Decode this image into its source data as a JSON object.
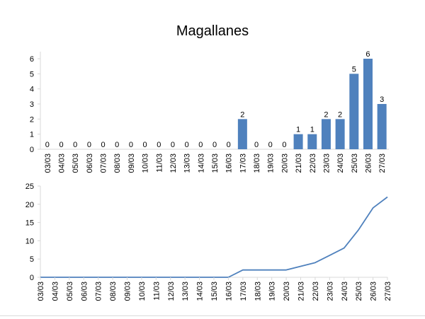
{
  "chart_data": [
    {
      "type": "bar",
      "title": "Magallanes",
      "categories": [
        "03/03",
        "04/03",
        "05/03",
        "06/03",
        "07/03",
        "08/03",
        "09/03",
        "10/03",
        "11/03",
        "12/03",
        "13/03",
        "14/03",
        "15/03",
        "16/03",
        "17/03",
        "18/03",
        "19/03",
        "20/03",
        "21/03",
        "22/03",
        "23/03",
        "24/03",
        "25/03",
        "26/03",
        "27/03"
      ],
      "values": [
        0,
        0,
        0,
        0,
        0,
        0,
        0,
        0,
        0,
        0,
        0,
        0,
        0,
        0,
        2,
        0,
        0,
        0,
        1,
        1,
        2,
        2,
        5,
        6,
        3
      ],
      "ylim": [
        0,
        6
      ],
      "yticks": [
        0,
        1,
        2,
        3,
        4,
        5,
        6
      ],
      "data_labels": true,
      "color": "#4f81bd",
      "grid": false
    },
    {
      "type": "line",
      "categories": [
        "03/03",
        "04/03",
        "05/03",
        "06/03",
        "07/03",
        "08/03",
        "09/03",
        "10/03",
        "11/03",
        "12/03",
        "13/03",
        "14/03",
        "15/03",
        "16/03",
        "17/03",
        "18/03",
        "19/03",
        "20/03",
        "21/03",
        "22/03",
        "23/03",
        "24/03",
        "25/03",
        "26/03",
        "27/03"
      ],
      "values": [
        0,
        0,
        0,
        0,
        0,
        0,
        0,
        0,
        0,
        0,
        0,
        0,
        0,
        0,
        2,
        2,
        2,
        2,
        3,
        4,
        6,
        8,
        13,
        19,
        22
      ],
      "ylim": [
        0,
        25
      ],
      "yticks": [
        0,
        5,
        10,
        15,
        20,
        25
      ],
      "color": "#4f81bd",
      "grid": false
    }
  ]
}
